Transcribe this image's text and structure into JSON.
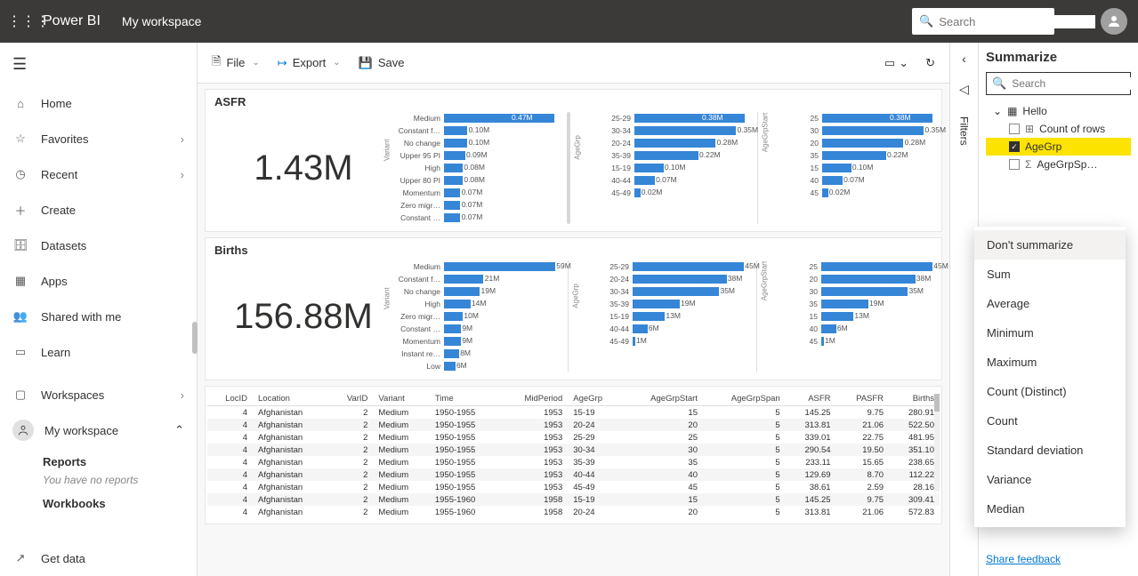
{
  "topbar": {
    "brand": "Power BI",
    "workspace": "My workspace",
    "search_placeholder": "Search"
  },
  "nav": {
    "items": [
      {
        "icon": "home",
        "label": "Home"
      },
      {
        "icon": "star",
        "label": "Favorites",
        "chev": true
      },
      {
        "icon": "clock",
        "label": "Recent",
        "chev": true
      },
      {
        "icon": "plus",
        "label": "Create"
      },
      {
        "icon": "db",
        "label": "Datasets"
      },
      {
        "icon": "grid",
        "label": "Apps"
      },
      {
        "icon": "share",
        "label": "Shared with me"
      },
      {
        "icon": "book",
        "label": "Learn"
      }
    ],
    "workspaces_label": "Workspaces",
    "my_workspace_label": "My workspace",
    "reports_label": "Reports",
    "reports_empty": "You have no reports",
    "workbooks_label": "Workbooks",
    "getdata_label": "Get data"
  },
  "toolbar": {
    "file": "File",
    "export": "Export",
    "save": "Save"
  },
  "cards": {
    "asfr": {
      "title": "ASFR",
      "big": "1.43M",
      "chart1": {
        "ytitle": "Variant",
        "max": 0.47,
        "bars": [
          {
            "label": "Medium",
            "val": 0.47,
            "vlab": "0.47M",
            "on": true
          },
          {
            "label": "Constant f…",
            "val": 0.1,
            "vlab": "0.10M"
          },
          {
            "label": "No change",
            "val": 0.1,
            "vlab": "0.10M"
          },
          {
            "label": "Upper 95 PI",
            "val": 0.09,
            "vlab": "0.09M"
          },
          {
            "label": "High",
            "val": 0.08,
            "vlab": "0.08M"
          },
          {
            "label": "Upper 80 PI",
            "val": 0.08,
            "vlab": "0.08M"
          },
          {
            "label": "Momentum",
            "val": 0.07,
            "vlab": "0.07M"
          },
          {
            "label": "Zero migr…",
            "val": 0.07,
            "vlab": "0.07M"
          },
          {
            "label": "Constant …",
            "val": 0.07,
            "vlab": "0.07M"
          }
        ]
      },
      "chart2": {
        "ytitle": "AgeGrp",
        "max": 0.38,
        "bars": [
          {
            "label": "25-29",
            "val": 0.38,
            "vlab": "0.38M",
            "on": true
          },
          {
            "label": "30-34",
            "val": 0.35,
            "vlab": "0.35M"
          },
          {
            "label": "20-24",
            "val": 0.28,
            "vlab": "0.28M"
          },
          {
            "label": "35-39",
            "val": 0.22,
            "vlab": "0.22M"
          },
          {
            "label": "15-19",
            "val": 0.1,
            "vlab": "0.10M"
          },
          {
            "label": "40-44",
            "val": 0.07,
            "vlab": "0.07M"
          },
          {
            "label": "45-49",
            "val": 0.02,
            "vlab": "0.02M"
          }
        ]
      },
      "chart3": {
        "ytitle": "AgeGrpStart",
        "max": 0.38,
        "bars": [
          {
            "label": "25",
            "val": 0.38,
            "vlab": "0.38M",
            "on": true
          },
          {
            "label": "30",
            "val": 0.35,
            "vlab": "0.35M"
          },
          {
            "label": "20",
            "val": 0.28,
            "vlab": "0.28M"
          },
          {
            "label": "35",
            "val": 0.22,
            "vlab": "0.22M"
          },
          {
            "label": "15",
            "val": 0.1,
            "vlab": "0.10M"
          },
          {
            "label": "40",
            "val": 0.07,
            "vlab": "0.07M"
          },
          {
            "label": "45",
            "val": 0.02,
            "vlab": "0.02M"
          }
        ]
      }
    },
    "births": {
      "title": "Births",
      "big": "156.88M",
      "chart1": {
        "ytitle": "Variant",
        "max": 59,
        "bars": [
          {
            "label": "Medium",
            "val": 59,
            "vlab": "59M"
          },
          {
            "label": "Constant f…",
            "val": 21,
            "vlab": "21M"
          },
          {
            "label": "No change",
            "val": 19,
            "vlab": "19M"
          },
          {
            "label": "High",
            "val": 14,
            "vlab": "14M"
          },
          {
            "label": "Zero migr…",
            "val": 10,
            "vlab": "10M"
          },
          {
            "label": "Constant …",
            "val": 9,
            "vlab": "9M"
          },
          {
            "label": "Momentum",
            "val": 9,
            "vlab": "9M"
          },
          {
            "label": "Instant re…",
            "val": 8,
            "vlab": "8M"
          },
          {
            "label": "Low",
            "val": 6,
            "vlab": "6M"
          }
        ]
      },
      "chart2": {
        "ytitle": "AgeGrp",
        "max": 45,
        "bars": [
          {
            "label": "25-29",
            "val": 45,
            "vlab": "45M"
          },
          {
            "label": "20-24",
            "val": 38,
            "vlab": "38M"
          },
          {
            "label": "30-34",
            "val": 35,
            "vlab": "35M"
          },
          {
            "label": "35-39",
            "val": 19,
            "vlab": "19M"
          },
          {
            "label": "15-19",
            "val": 13,
            "vlab": "13M"
          },
          {
            "label": "40-44",
            "val": 6,
            "vlab": "6M"
          },
          {
            "label": "45-49",
            "val": 1,
            "vlab": "1M"
          }
        ]
      },
      "chart3": {
        "ytitle": "AgeGrpStart",
        "max": 45,
        "bars": [
          {
            "label": "25",
            "val": 45,
            "vlab": "45M"
          },
          {
            "label": "20",
            "val": 38,
            "vlab": "38M"
          },
          {
            "label": "30",
            "val": 35,
            "vlab": "35M"
          },
          {
            "label": "35",
            "val": 19,
            "vlab": "19M"
          },
          {
            "label": "15",
            "val": 13,
            "vlab": "13M"
          },
          {
            "label": "40",
            "val": 6,
            "vlab": "6M"
          },
          {
            "label": "45",
            "val": 1,
            "vlab": "1M"
          }
        ]
      }
    }
  },
  "table": {
    "columns": [
      "LocID",
      "Location",
      "VarID",
      "Variant",
      "Time",
      "MidPeriod",
      "AgeGrp",
      "AgeGrpStart",
      "AgeGrpSpan",
      "ASFR",
      "PASFR",
      "Births"
    ],
    "rows": [
      [
        4,
        "Afghanistan",
        2,
        "Medium",
        "1950-1955",
        1953,
        "15-19",
        15,
        5,
        "145.25",
        "9.75",
        "280.91"
      ],
      [
        4,
        "Afghanistan",
        2,
        "Medium",
        "1950-1955",
        1953,
        "20-24",
        20,
        5,
        "313.81",
        "21.06",
        "522.50"
      ],
      [
        4,
        "Afghanistan",
        2,
        "Medium",
        "1950-1955",
        1953,
        "25-29",
        25,
        5,
        "339.01",
        "22.75",
        "481.95"
      ],
      [
        4,
        "Afghanistan",
        2,
        "Medium",
        "1950-1955",
        1953,
        "30-34",
        30,
        5,
        "290.54",
        "19.50",
        "351.10"
      ],
      [
        4,
        "Afghanistan",
        2,
        "Medium",
        "1950-1955",
        1953,
        "35-39",
        35,
        5,
        "233.11",
        "15.65",
        "238.65"
      ],
      [
        4,
        "Afghanistan",
        2,
        "Medium",
        "1950-1955",
        1953,
        "40-44",
        40,
        5,
        "129.69",
        "8.70",
        "112.22"
      ],
      [
        4,
        "Afghanistan",
        2,
        "Medium",
        "1950-1955",
        1953,
        "45-49",
        45,
        5,
        "38.61",
        "2.59",
        "28.16"
      ],
      [
        4,
        "Afghanistan",
        2,
        "Medium",
        "1955-1960",
        1958,
        "15-19",
        15,
        5,
        "145.25",
        "9.75",
        "309.41"
      ],
      [
        4,
        "Afghanistan",
        2,
        "Medium",
        "1955-1960",
        1958,
        "20-24",
        20,
        5,
        "313.81",
        "21.06",
        "572.83"
      ]
    ]
  },
  "summarize": {
    "title": "Summarize",
    "search_placeholder": "Search",
    "table_name": "Hello",
    "fields": [
      {
        "name": "Count of rows",
        "checked": false,
        "icon": "hash"
      },
      {
        "name": "AgeGrp",
        "checked": true,
        "selected": true
      },
      {
        "name": "AgeGrpSp…",
        "checked": false,
        "icon": "sigma"
      }
    ],
    "share_feedback": "Share feedback"
  },
  "ctxmenu": [
    "Don't summarize",
    "Sum",
    "Average",
    "Minimum",
    "Maximum",
    "Count (Distinct)",
    "Count",
    "Standard deviation",
    "Variance",
    "Median"
  ],
  "filters_label": "Filters",
  "colors": {
    "bar": "#3686d7",
    "accent": "#fde300"
  }
}
